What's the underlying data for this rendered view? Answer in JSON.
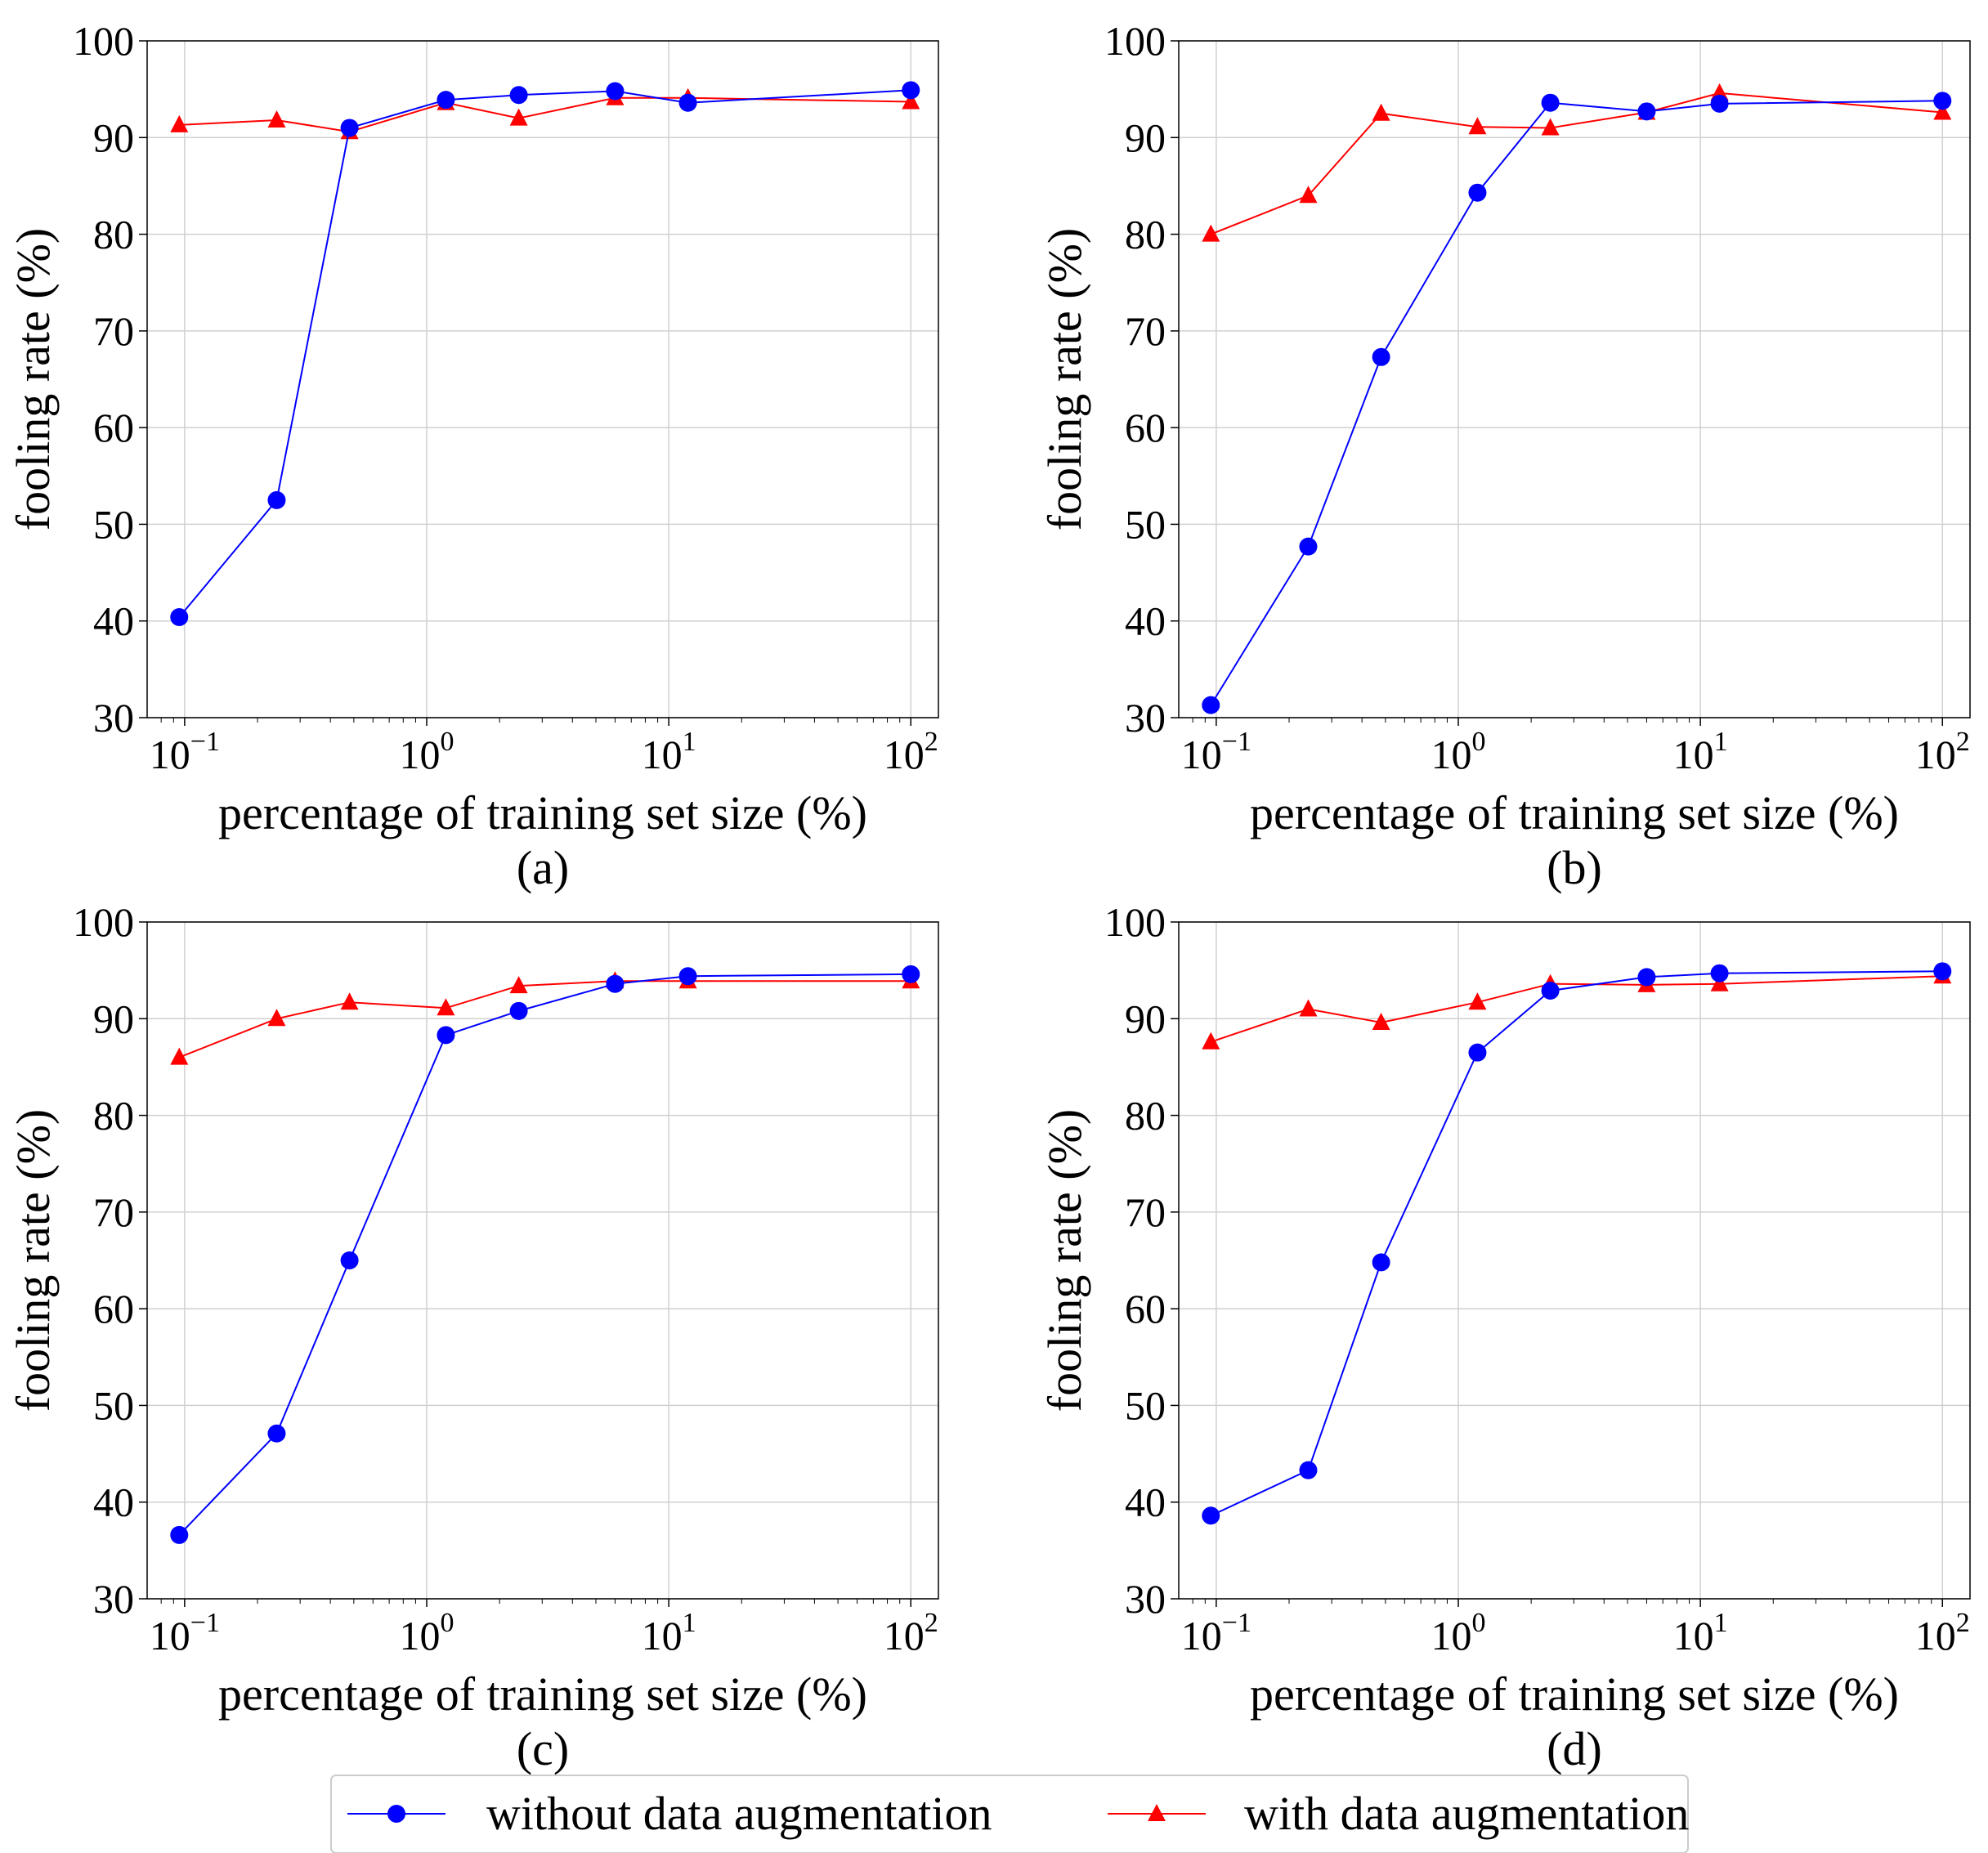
{
  "figure": {
    "legend": {
      "entries": [
        {
          "label": "without data augmentation",
          "color": "#0000ff",
          "marker": "circle"
        },
        {
          "label": "with data augmentation",
          "color": "#ff0000",
          "marker": "triangle"
        }
      ]
    }
  },
  "chart_data": [
    {
      "type": "line",
      "panel_label": "(a)",
      "xlabel": "percentage of training set size (%)",
      "ylabel": "fooling rate (%)",
      "xscale": "log",
      "xlim": [
        0.07,
        130
      ],
      "ylim": [
        30,
        100
      ],
      "yticks": [
        30,
        40,
        50,
        60,
        70,
        80,
        90,
        100
      ],
      "xticks": [
        {
          "value": 0.1,
          "exp": "−1"
        },
        {
          "value": 1,
          "exp": "0"
        },
        {
          "value": 10,
          "exp": "1"
        },
        {
          "value": 100,
          "exp": "2"
        }
      ],
      "grid": true,
      "x": [
        0.095,
        0.24,
        0.48,
        1.2,
        2.4,
        6.0,
        12.0,
        100
      ],
      "series": [
        {
          "name": "without data augmentation",
          "color": "#0000ff",
          "marker": "circle",
          "values": [
            40.4,
            52.5,
            91.0,
            93.9,
            94.4,
            94.8,
            93.6,
            94.9
          ]
        },
        {
          "name": "with data augmentation",
          "color": "#ff0000",
          "marker": "triangle",
          "values": [
            91.3,
            91.8,
            90.6,
            93.6,
            92.0,
            94.1,
            94.1,
            93.7
          ]
        }
      ]
    },
    {
      "type": "line",
      "panel_label": "(b)",
      "xlabel": "percentage of training set size (%)",
      "ylabel": "fooling rate (%)",
      "xscale": "log",
      "xlim": [
        0.07,
        130
      ],
      "ylim": [
        30,
        100
      ],
      "yticks": [
        30,
        40,
        50,
        60,
        70,
        80,
        90,
        100
      ],
      "xticks": [
        {
          "value": 0.1,
          "exp": "−1"
        },
        {
          "value": 1,
          "exp": "0"
        },
        {
          "value": 10,
          "exp": "1"
        },
        {
          "value": 100,
          "exp": "2"
        }
      ],
      "grid": true,
      "x": [
        0.095,
        0.24,
        0.48,
        1.2,
        2.4,
        6.0,
        12.0,
        100
      ],
      "series": [
        {
          "name": "without data augmentation",
          "color": "#0000ff",
          "marker": "circle",
          "values": [
            31.3,
            47.7,
            67.3,
            84.3,
            93.6,
            92.7,
            93.5,
            93.8
          ]
        },
        {
          "name": "with data augmentation",
          "color": "#ff0000",
          "marker": "triangle",
          "values": [
            80.0,
            84.0,
            92.5,
            91.1,
            91.0,
            92.6,
            94.6,
            92.6
          ]
        }
      ]
    },
    {
      "type": "line",
      "panel_label": "(c)",
      "xlabel": "percentage of training set size (%)",
      "ylabel": "fooling rate (%)",
      "xscale": "log",
      "xlim": [
        0.07,
        130
      ],
      "ylim": [
        30,
        100
      ],
      "yticks": [
        30,
        40,
        50,
        60,
        70,
        80,
        90,
        100
      ],
      "xticks": [
        {
          "value": 0.1,
          "exp": "−1"
        },
        {
          "value": 1,
          "exp": "0"
        },
        {
          "value": 10,
          "exp": "1"
        },
        {
          "value": 100,
          "exp": "2"
        }
      ],
      "grid": true,
      "x": [
        0.095,
        0.24,
        0.48,
        1.2,
        2.4,
        6.0,
        12.0,
        100
      ],
      "series": [
        {
          "name": "without data augmentation",
          "color": "#0000ff",
          "marker": "circle",
          "values": [
            36.6,
            47.1,
            65.0,
            88.3,
            90.8,
            93.6,
            94.4,
            94.6
          ]
        },
        {
          "name": "with data augmentation",
          "color": "#ff0000",
          "marker": "triangle",
          "values": [
            86.0,
            90.0,
            91.7,
            91.1,
            93.4,
            93.9,
            93.9,
            93.9
          ]
        }
      ]
    },
    {
      "type": "line",
      "panel_label": "(d)",
      "xlabel": "percentage of training set size (%)",
      "ylabel": "fooling rate (%)",
      "xscale": "log",
      "xlim": [
        0.07,
        130
      ],
      "ylim": [
        30,
        100
      ],
      "yticks": [
        30,
        40,
        50,
        60,
        70,
        80,
        90,
        100
      ],
      "xticks": [
        {
          "value": 0.1,
          "exp": "−1"
        },
        {
          "value": 1,
          "exp": "0"
        },
        {
          "value": 10,
          "exp": "1"
        },
        {
          "value": 100,
          "exp": "2"
        }
      ],
      "grid": true,
      "x": [
        0.095,
        0.24,
        0.48,
        1.2,
        2.4,
        6.0,
        12.0,
        100
      ],
      "series": [
        {
          "name": "without data augmentation",
          "color": "#0000ff",
          "marker": "circle",
          "values": [
            38.6,
            43.3,
            64.8,
            86.5,
            92.9,
            94.3,
            94.7,
            94.9
          ]
        },
        {
          "name": "with data augmentation",
          "color": "#ff0000",
          "marker": "triangle",
          "values": [
            87.6,
            91.0,
            89.6,
            91.7,
            93.6,
            93.5,
            93.6,
            94.4
          ]
        }
      ]
    }
  ]
}
